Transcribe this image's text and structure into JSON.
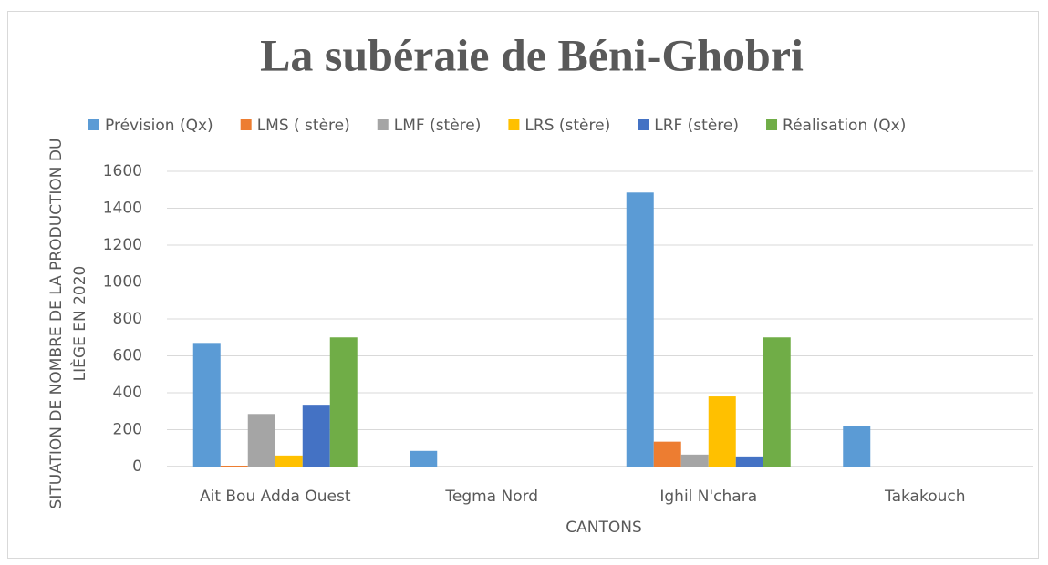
{
  "chart_data": {
    "type": "bar",
    "title": "La subéraie de Béni-Ghobri",
    "y_label": [
      "SITUATION DE NOMBRE DE LA PRODUCTION DU",
      "LIÈGE EN 2020"
    ],
    "x_label": "CANTONS",
    "categories": [
      "Ait Bou Adda Ouest",
      "Tegma Nord",
      "Ighil N'chara",
      "Takakouch"
    ],
    "series": [
      {
        "name": "Prévision (Qx)",
        "color": "#5b9bd5",
        "values": [
          670,
          85,
          1485,
          220
        ]
      },
      {
        "name": "LMS ( stère)",
        "color": "#ed7d31",
        "values": [
          5,
          0,
          135,
          0
        ]
      },
      {
        "name": "LMF (stère)",
        "color": "#a5a5a5",
        "values": [
          285,
          0,
          65,
          0
        ]
      },
      {
        "name": "LRS (stère)",
        "color": "#ffc000",
        "values": [
          60,
          0,
          380,
          0
        ]
      },
      {
        "name": "LRF (stère)",
        "color": "#4472c4",
        "values": [
          335,
          0,
          55,
          0
        ]
      },
      {
        "name": "Réalisation (Qx)",
        "color": "#70ad47",
        "values": [
          700,
          0,
          700,
          0
        ]
      }
    ],
    "ylim": [
      0,
      1600
    ],
    "yticks": [
      0,
      200,
      400,
      600,
      800,
      1000,
      1200,
      1400,
      1600
    ],
    "grid": true,
    "legend": "top"
  }
}
